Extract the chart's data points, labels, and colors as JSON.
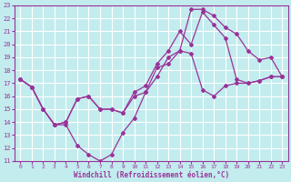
{
  "xlabel": "Windchill (Refroidissement éolien,°C)",
  "xlim": [
    -0.5,
    23.5
  ],
  "ylim": [
    11,
    23
  ],
  "xticks": [
    0,
    1,
    2,
    3,
    4,
    5,
    6,
    7,
    8,
    9,
    10,
    11,
    12,
    13,
    14,
    15,
    16,
    17,
    18,
    19,
    20,
    21,
    22,
    23
  ],
  "yticks": [
    11,
    12,
    13,
    14,
    15,
    16,
    17,
    18,
    19,
    20,
    21,
    22,
    23
  ],
  "background_color": "#c2ecee",
  "grid_color": "#ffffff",
  "line_color": "#993399",
  "line1_x": [
    0,
    1,
    2,
    3,
    4,
    5,
    6,
    7,
    8,
    9,
    10,
    11,
    12,
    13,
    14,
    15,
    16,
    17,
    18,
    19,
    20,
    21,
    22,
    23
  ],
  "line1_y": [
    17.3,
    16.7,
    15.0,
    13.8,
    13.8,
    12.2,
    11.5,
    11.0,
    11.5,
    13.2,
    14.3,
    16.3,
    18.2,
    18.5,
    19.5,
    22.7,
    22.7,
    22.2,
    21.3,
    20.8,
    19.5,
    18.8,
    19.0,
    17.5
  ],
  "line2_x": [
    0,
    1,
    2,
    3,
    4,
    5,
    6,
    7,
    8,
    9,
    10,
    11,
    12,
    13,
    14,
    15,
    16,
    17,
    18,
    19,
    20,
    21,
    22,
    23
  ],
  "line2_y": [
    17.3,
    16.7,
    15.0,
    13.8,
    14.0,
    15.8,
    16.0,
    15.0,
    15.0,
    14.7,
    16.3,
    16.8,
    18.5,
    19.5,
    21.0,
    20.0,
    22.5,
    21.5,
    20.5,
    17.3,
    17.0,
    17.2,
    17.5,
    17.5
  ],
  "line3_x": [
    0,
    1,
    2,
    3,
    4,
    5,
    6,
    7,
    8,
    9,
    10,
    11,
    12,
    13,
    14,
    15,
    16,
    17,
    18,
    19,
    20,
    21,
    22,
    23
  ],
  "line3_y": [
    17.3,
    16.7,
    15.0,
    13.8,
    14.0,
    15.8,
    16.0,
    15.0,
    15.0,
    14.7,
    16.0,
    16.3,
    17.5,
    19.0,
    19.5,
    19.3,
    16.5,
    16.0,
    16.8,
    17.0,
    17.0,
    17.2,
    17.5,
    17.5
  ]
}
